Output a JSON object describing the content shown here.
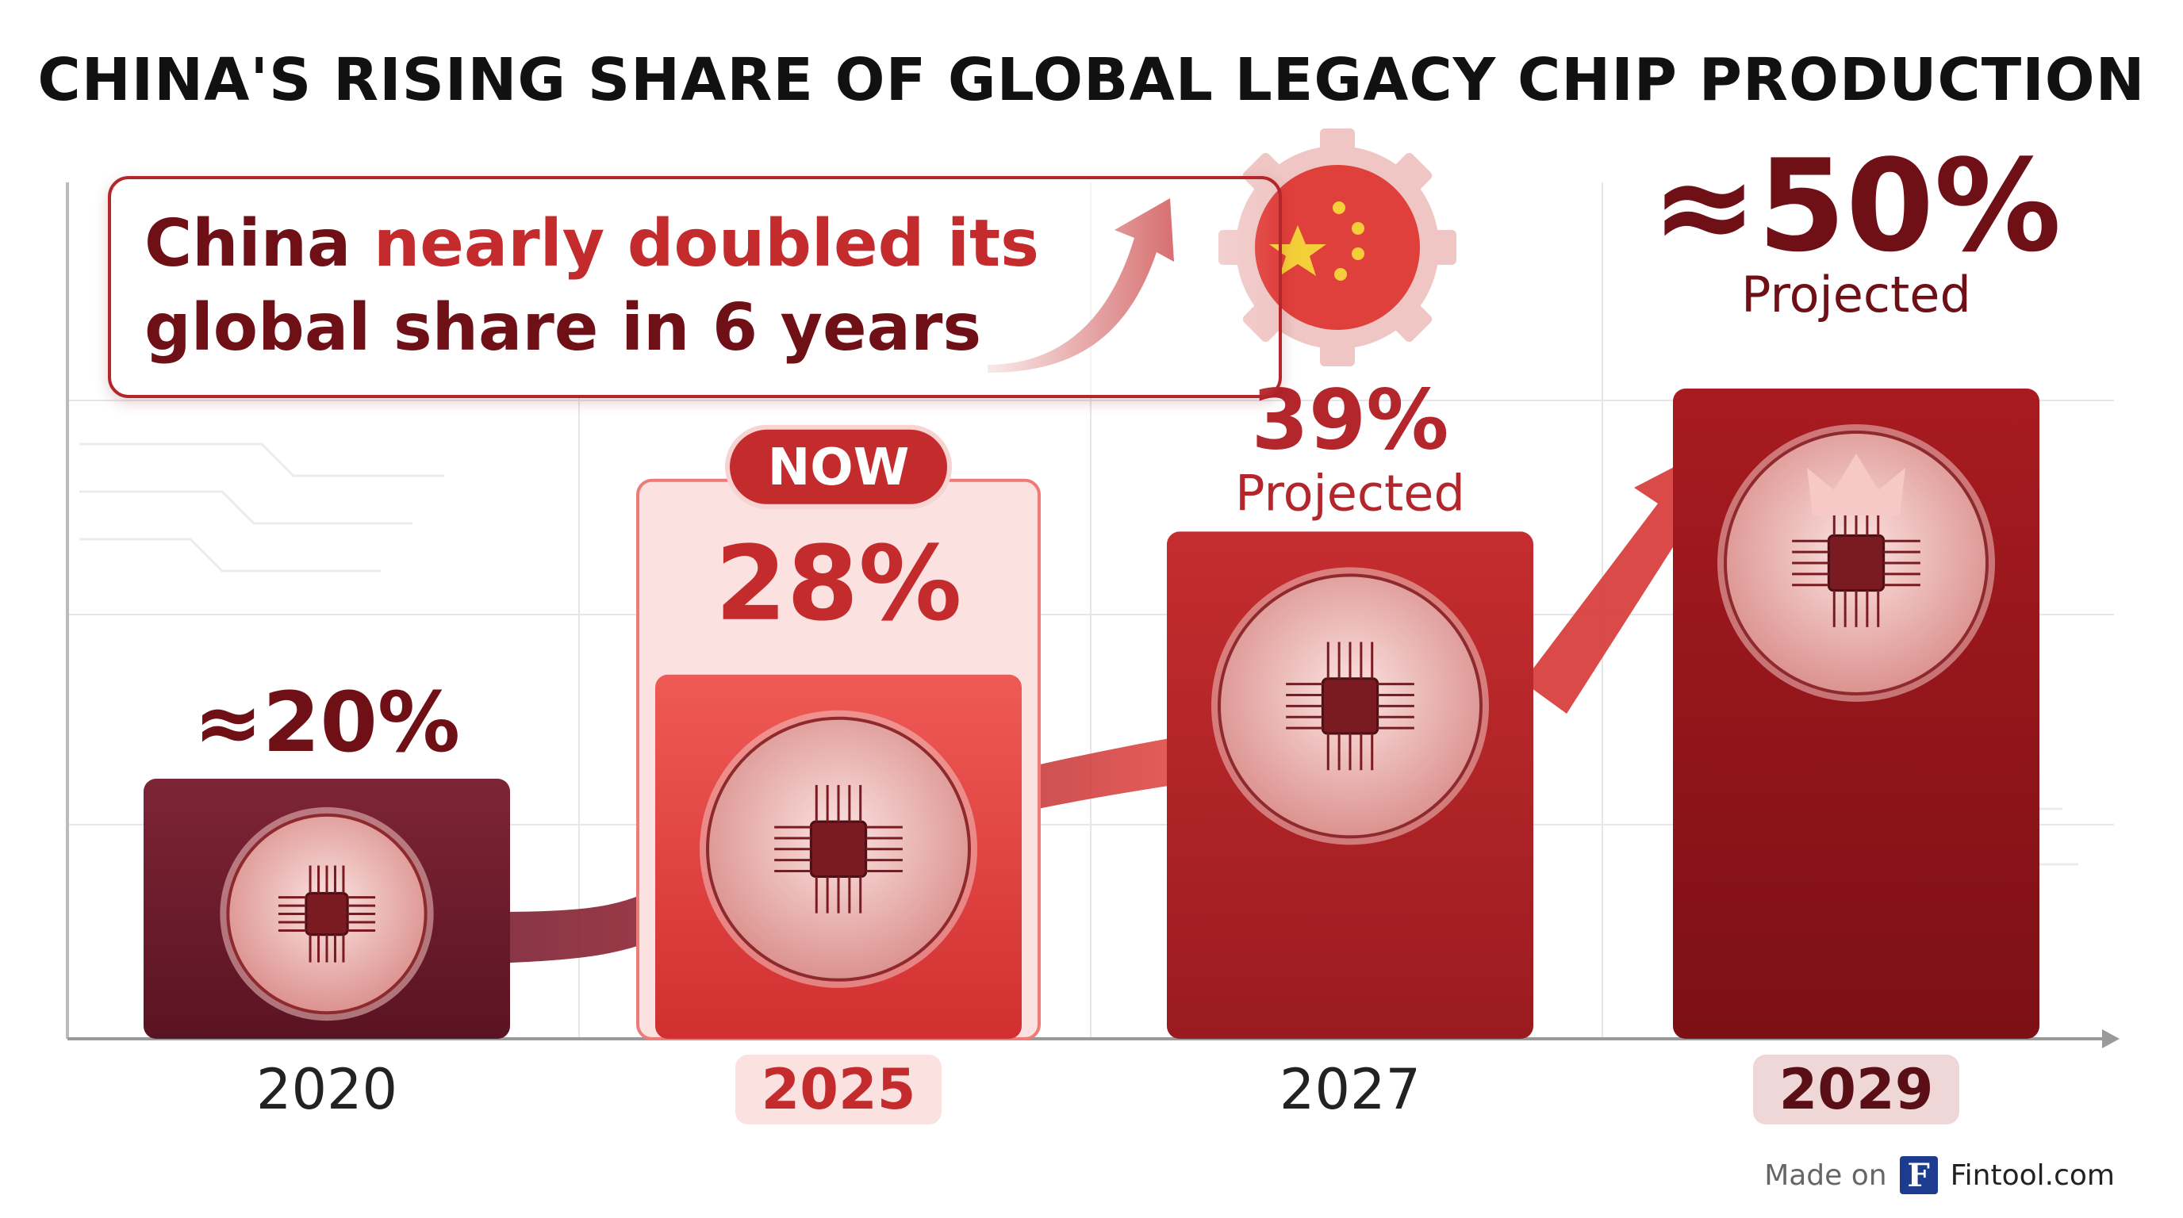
{
  "title": "CHINA'S RISING SHARE OF GLOBAL LEGACY CHIP PRODUCTION",
  "callout": {
    "line1_pre": "China ",
    "line1_hl": "nearly doubled its",
    "line2": "global share in 6 years"
  },
  "badge_now": "NOW",
  "chart_data": {
    "type": "bar",
    "categories": [
      "2020",
      "2025",
      "2027",
      "2029"
    ],
    "values": [
      20,
      28,
      39,
      50
    ],
    "value_labels": [
      "≈20%",
      "28%",
      "39%",
      "≈50%"
    ],
    "sublabels": [
      "",
      "",
      "Projected",
      "Projected"
    ],
    "highlighted": [
      "2025",
      "2029"
    ],
    "unit": "%",
    "title": "CHINA'S RISING SHARE OF GLOBAL LEGACY CHIP PRODUCTION",
    "xlabel": "",
    "ylabel": "",
    "legend": "none"
  },
  "colors": {
    "bar_2020": "#6e1a2b",
    "bar_2025": "#e0413f",
    "bar_2027": "#b8262a",
    "bar_2029": "#8e1418",
    "text_dark_red": "#6e1016",
    "accent_red": "#c42b2d"
  },
  "footer": {
    "made_on": "Made on",
    "logo_letter": "F",
    "brand": "Fintool.com"
  }
}
